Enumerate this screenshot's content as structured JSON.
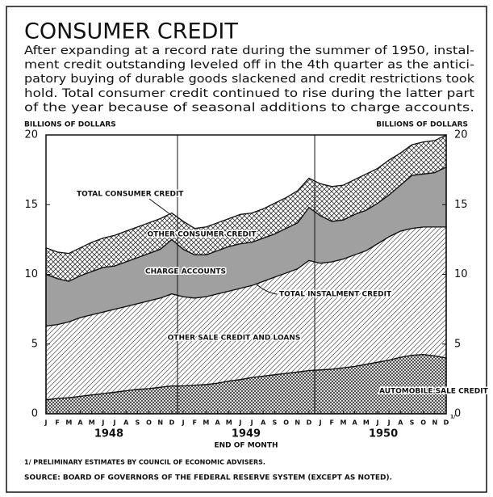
{
  "chart_data": {
    "type": "area",
    "stacked": true,
    "title": "CONSUMER CREDIT",
    "subtitle_lines": [
      "After expanding at a record rate during the summer of 1950, instal-",
      "ment credit outstanding leveled off in the 4th quarter as the antici-",
      "patory buying of durable goods slackened and credit restrictions took",
      "hold. Total consumer credit continued to rise during the latter part",
      "of the year because of seasonal additions to charge accounts."
    ],
    "y_label": "BILLIONS OF DOLLARS",
    "y2_label": "BILLIONS OF DOLLARS",
    "x_label": "END OF MONTH",
    "categories": [
      "J",
      "F",
      "M",
      "A",
      "M",
      "J",
      "J",
      "A",
      "S",
      "O",
      "N",
      "D",
      "J",
      "F",
      "M",
      "A",
      "M",
      "J",
      "J",
      "A",
      "S",
      "O",
      "N",
      "D",
      "J",
      "F",
      "M",
      "A",
      "M",
      "J",
      "J",
      "A",
      "S",
      "O",
      "N",
      "D"
    ],
    "year_labels": [
      "1948",
      "1949",
      "1950"
    ],
    "footnote_ref": "1/",
    "series": [
      {
        "name": "AUTOMOBILE SALE CREDIT",
        "color": "#333333",
        "pattern": "crosshatch-dense",
        "values": [
          1.0,
          1.1,
          1.15,
          1.25,
          1.35,
          1.45,
          1.55,
          1.65,
          1.75,
          1.8,
          1.9,
          2.0,
          2.0,
          2.05,
          2.1,
          2.2,
          2.35,
          2.45,
          2.6,
          2.7,
          2.8,
          2.9,
          3.0,
          3.1,
          3.15,
          3.2,
          3.3,
          3.4,
          3.55,
          3.7,
          3.85,
          4.05,
          4.2,
          4.25,
          4.15,
          4.0
        ]
      },
      {
        "name": "OTHER SALE CREDIT AND LOANS",
        "color": "#666666",
        "pattern": "diagonal",
        "values": [
          5.3,
          5.3,
          5.45,
          5.65,
          5.75,
          5.85,
          5.95,
          6.05,
          6.15,
          6.3,
          6.4,
          6.6,
          6.4,
          6.25,
          6.3,
          6.4,
          6.45,
          6.55,
          6.6,
          6.8,
          7.0,
          7.2,
          7.4,
          7.9,
          7.65,
          7.7,
          7.8,
          8.0,
          8.15,
          8.5,
          8.85,
          9.05,
          9.1,
          9.15,
          9.25,
          9.4
        ]
      },
      {
        "name": "CHARGE ACCOUNTS",
        "color": "#a0a0a0",
        "pattern": "solid",
        "values": [
          3.7,
          3.3,
          2.9,
          3.0,
          3.1,
          3.2,
          3.1,
          3.2,
          3.3,
          3.4,
          3.5,
          3.9,
          3.4,
          3.1,
          3.0,
          3.1,
          3.2,
          3.2,
          3.1,
          3.1,
          3.1,
          3.2,
          3.3,
          3.8,
          3.4,
          2.9,
          2.8,
          2.9,
          2.9,
          2.9,
          3.0,
          3.3,
          3.8,
          3.8,
          3.9,
          4.3
        ]
      },
      {
        "name": "OTHER CONSUMER CREDIT",
        "color": "#333333",
        "pattern": "crosshatch",
        "values": [
          1.9,
          1.9,
          2.0,
          2.0,
          2.1,
          2.1,
          2.2,
          2.2,
          2.2,
          2.2,
          2.2,
          1.9,
          2.0,
          1.9,
          2.0,
          2.0,
          2.0,
          2.1,
          2.1,
          2.1,
          2.2,
          2.2,
          2.3,
          2.1,
          2.3,
          2.5,
          2.5,
          2.5,
          2.6,
          2.5,
          2.5,
          2.3,
          2.2,
          2.3,
          2.3,
          2.3
        ]
      }
    ],
    "annotations": [
      "TOTAL CONSUMER CREDIT",
      "TOTAL INSTALMENT CREDIT"
    ],
    "ylim": [
      0,
      20
    ],
    "yticks": [
      0,
      5,
      10,
      15,
      20
    ],
    "y2lim": [
      0,
      20
    ],
    "y2ticks": [
      0,
      5,
      10,
      15,
      20
    ],
    "footnote": "1/ PRELIMINARY ESTIMATES BY COUNCIL OF ECONOMIC ADVISERS.",
    "source": "SOURCE: BOARD OF GOVERNORS OF THE FEDERAL RESERVE SYSTEM (EXCEPT AS NOTED)."
  }
}
